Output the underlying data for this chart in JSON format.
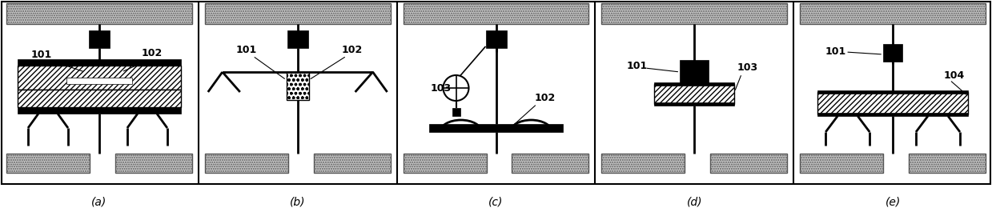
{
  "bg_color": "#ffffff",
  "fig_width": 12.39,
  "fig_height": 2.7,
  "panel_labels": [
    "(a)",
    "(b)",
    "(c)",
    "(d)",
    "(e)"
  ]
}
